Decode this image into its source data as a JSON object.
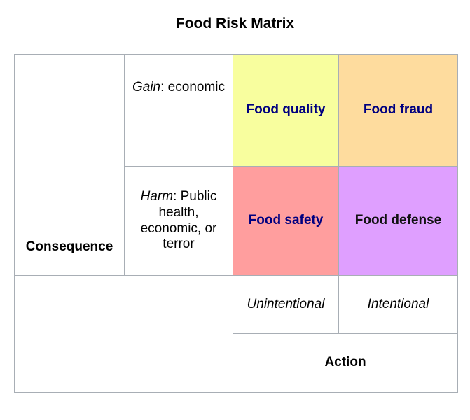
{
  "title": "Food Risk Matrix",
  "rows": {
    "consequence_label": "Consequence",
    "gain": {
      "term": "Gain",
      "rest": ": economic"
    },
    "harm": {
      "term": "Harm",
      "rest": ": Public health, economic, or terror"
    }
  },
  "cells": {
    "quality": {
      "label": "Food quality",
      "color": "#f8fe9e"
    },
    "fraud": {
      "label": "Food fraud",
      "color": "#fedc9e"
    },
    "safety": {
      "label": "Food safety",
      "color": "#ff9e9e"
    },
    "defense": {
      "label": "Food defense",
      "color": "#df9fff"
    }
  },
  "columns": {
    "unintentional": "Unintentional",
    "intentional": "Intentional",
    "action_label": "Action"
  }
}
